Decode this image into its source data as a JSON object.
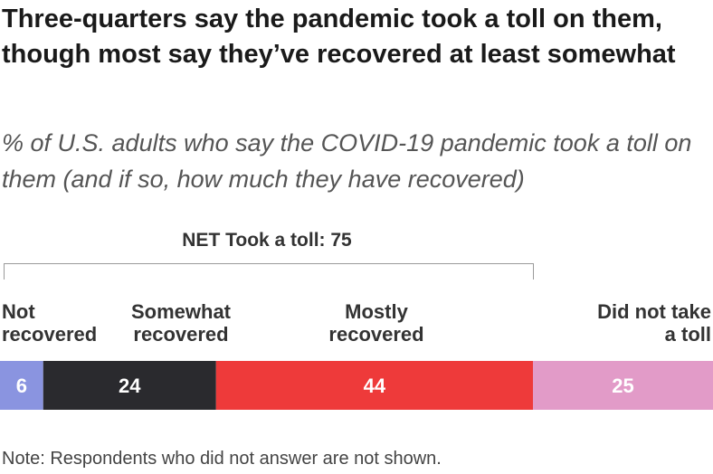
{
  "chart_data": {
    "type": "bar",
    "orientation": "horizontal-stacked",
    "title": "Three-quarters say the pandemic took a toll on them, though most say they’ve recovered at least somewhat",
    "subtitle": "% of U.S. adults who say the COVID-19 pandemic took a toll on them (and if so, how much they have recovered)",
    "bracket_label": "NET Took a toll: 75",
    "categories": [
      "Not recovered",
      "Somewhat recovered",
      "Mostly recovered",
      "Did not take a toll"
    ],
    "category_labels": [
      "Not\nrecovered",
      "Somewhat\nrecovered",
      "Mostly\nrecovered",
      "Did not take\na toll"
    ],
    "values": [
      6,
      24,
      44,
      25
    ],
    "colors": [
      "#8a94e0",
      "#2a2a2e",
      "#ee3a3a",
      "#e29bc8"
    ],
    "xlim": [
      0,
      100
    ],
    "legend": "none",
    "grid": false
  },
  "note": "Note: Respondents who did not answer are not shown."
}
